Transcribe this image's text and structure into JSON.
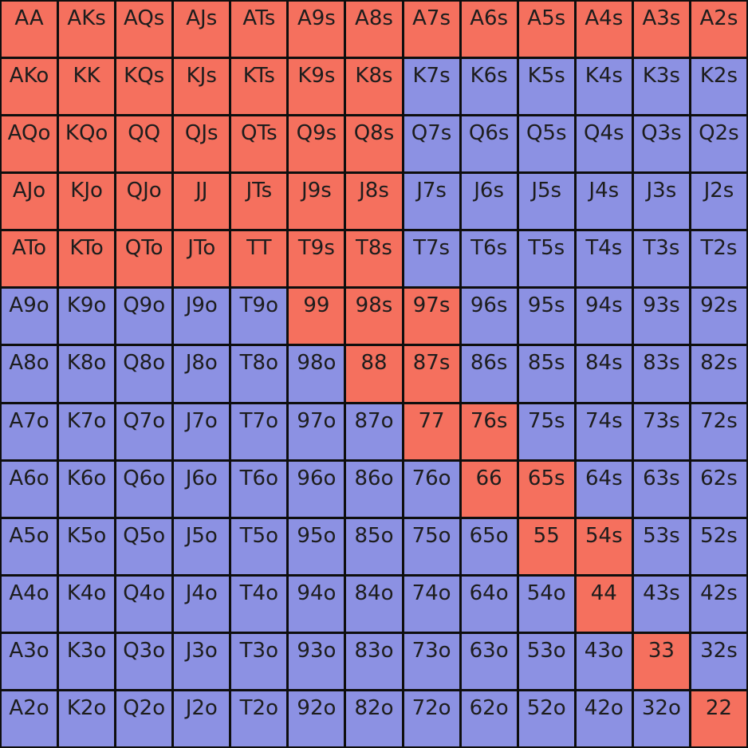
{
  "colors": {
    "red_cell": "#f5705e",
    "blue_cell": "#8c91e3",
    "grid_line": "#0e0e0e",
    "text": "#1d1d1d"
  },
  "chart_data": {
    "type": "heatmap",
    "description": "13x13 poker starting-hand range matrix; red cells are highlighted hands, blue cells are the remainder",
    "ranks": [
      "A",
      "K",
      "Q",
      "J",
      "T",
      "9",
      "8",
      "7",
      "6",
      "5",
      "4",
      "3",
      "2"
    ],
    "hands": [
      [
        "AA",
        "AKs",
        "AQs",
        "AJs",
        "ATs",
        "A9s",
        "A8s",
        "A7s",
        "A6s",
        "A5s",
        "A4s",
        "A3s",
        "A2s"
      ],
      [
        "AKo",
        "KK",
        "KQs",
        "KJs",
        "KTs",
        "K9s",
        "K8s",
        "K7s",
        "K6s",
        "K5s",
        "K4s",
        "K3s",
        "K2s"
      ],
      [
        "AQo",
        "KQo",
        "QQ",
        "QJs",
        "QTs",
        "Q9s",
        "Q8s",
        "Q7s",
        "Q6s",
        "Q5s",
        "Q4s",
        "Q3s",
        "Q2s"
      ],
      [
        "AJo",
        "KJo",
        "QJo",
        "JJ",
        "JTs",
        "J9s",
        "J8s",
        "J7s",
        "J6s",
        "J5s",
        "J4s",
        "J3s",
        "J2s"
      ],
      [
        "ATo",
        "KTo",
        "QTo",
        "JTo",
        "TT",
        "T9s",
        "T8s",
        "T7s",
        "T6s",
        "T5s",
        "T4s",
        "T3s",
        "T2s"
      ],
      [
        "A9o",
        "K9o",
        "Q9o",
        "J9o",
        "T9o",
        "99",
        "98s",
        "97s",
        "96s",
        "95s",
        "94s",
        "93s",
        "92s"
      ],
      [
        "A8o",
        "K8o",
        "Q8o",
        "J8o",
        "T8o",
        "98o",
        "88",
        "87s",
        "86s",
        "85s",
        "84s",
        "83s",
        "82s"
      ],
      [
        "A7o",
        "K7o",
        "Q7o",
        "J7o",
        "T7o",
        "97o",
        "87o",
        "77",
        "76s",
        "75s",
        "74s",
        "73s",
        "72s"
      ],
      [
        "A6o",
        "K6o",
        "Q6o",
        "J6o",
        "T6o",
        "96o",
        "86o",
        "76o",
        "66",
        "65s",
        "64s",
        "63s",
        "62s"
      ],
      [
        "A5o",
        "K5o",
        "Q5o",
        "J5o",
        "T5o",
        "95o",
        "85o",
        "75o",
        "65o",
        "55",
        "54s",
        "53s",
        "52s"
      ],
      [
        "A4o",
        "K4o",
        "Q4o",
        "J4o",
        "T4o",
        "94o",
        "84o",
        "74o",
        "64o",
        "54o",
        "44",
        "43s",
        "42s"
      ],
      [
        "A3o",
        "K3o",
        "Q3o",
        "J3o",
        "T3o",
        "93o",
        "83o",
        "73o",
        "63o",
        "53o",
        "43o",
        "33",
        "32s"
      ],
      [
        "A2o",
        "K2o",
        "Q2o",
        "J2o",
        "T2o",
        "92o",
        "82o",
        "72o",
        "62o",
        "52o",
        "42o",
        "32o",
        "22"
      ]
    ],
    "red_matrix": [
      [
        1,
        1,
        1,
        1,
        1,
        1,
        1,
        1,
        1,
        1,
        1,
        1,
        1
      ],
      [
        1,
        1,
        1,
        1,
        1,
        1,
        1,
        0,
        0,
        0,
        0,
        0,
        0
      ],
      [
        1,
        1,
        1,
        1,
        1,
        1,
        1,
        0,
        0,
        0,
        0,
        0,
        0
      ],
      [
        1,
        1,
        1,
        1,
        1,
        1,
        1,
        0,
        0,
        0,
        0,
        0,
        0
      ],
      [
        1,
        1,
        1,
        1,
        1,
        1,
        1,
        0,
        0,
        0,
        0,
        0,
        0
      ],
      [
        0,
        0,
        0,
        0,
        0,
        1,
        1,
        1,
        0,
        0,
        0,
        0,
        0
      ],
      [
        0,
        0,
        0,
        0,
        0,
        0,
        1,
        1,
        0,
        0,
        0,
        0,
        0
      ],
      [
        0,
        0,
        0,
        0,
        0,
        0,
        0,
        1,
        1,
        0,
        0,
        0,
        0
      ],
      [
        0,
        0,
        0,
        0,
        0,
        0,
        0,
        0,
        1,
        1,
        0,
        0,
        0
      ],
      [
        0,
        0,
        0,
        0,
        0,
        0,
        0,
        0,
        0,
        1,
        1,
        0,
        0
      ],
      [
        0,
        0,
        0,
        0,
        0,
        0,
        0,
        0,
        0,
        0,
        1,
        0,
        0
      ],
      [
        0,
        0,
        0,
        0,
        0,
        0,
        0,
        0,
        0,
        0,
        0,
        1,
        0
      ],
      [
        0,
        0,
        0,
        0,
        0,
        0,
        0,
        0,
        0,
        0,
        0,
        0,
        1
      ]
    ]
  }
}
